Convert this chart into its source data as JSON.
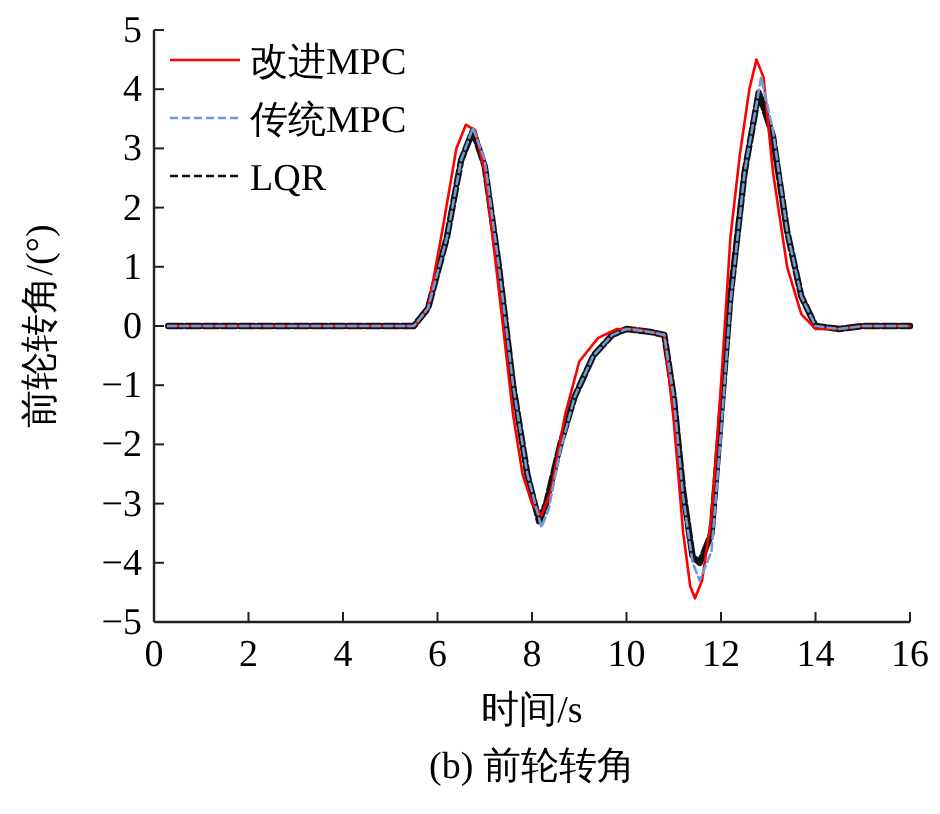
{
  "chart_data": {
    "type": "line",
    "title": "(b) 前轮转角",
    "xlabel": "时间/s",
    "ylabel": "前轮转角/(°)",
    "xlim": [
      0,
      16
    ],
    "xticks": [
      0,
      2,
      4,
      6,
      8,
      10,
      12,
      14,
      16
    ],
    "ylim": [
      -5,
      5
    ],
    "yticks": [
      {
        "value": -5,
        "label": "−5"
      },
      {
        "value": -4,
        "label": "−4"
      },
      {
        "value": -3,
        "label": "−3"
      },
      {
        "value": -2,
        "label": "−2"
      },
      {
        "value": -1,
        "label": "−1"
      },
      0,
      1,
      2,
      3,
      4,
      5
    ],
    "grid": false,
    "legend": "top left",
    "series": [
      {
        "name": "改进MPC",
        "color": "#ff0000",
        "line_style": "solid",
        "x": [
          0.3,
          5.5,
          5.8,
          6.1,
          6.4,
          6.6,
          6.8,
          7.0,
          7.3,
          7.6,
          7.8,
          8.0,
          8.2,
          8.4,
          8.7,
          9.0,
          9.4,
          9.8,
          10.2,
          10.8,
          11.0,
          11.2,
          11.35,
          11.45,
          11.6,
          11.8,
          12.0,
          12.2,
          12.4,
          12.6,
          12.75,
          12.9,
          13.1,
          13.4,
          13.7,
          14.0,
          14.5,
          15.0,
          16.0
        ],
        "values": [
          0,
          0,
          0.3,
          1.6,
          3.0,
          3.4,
          3.3,
          2.6,
          0.6,
          -1.5,
          -2.5,
          -3.0,
          -3.2,
          -2.8,
          -1.5,
          -0.6,
          -0.2,
          -0.05,
          -0.05,
          -0.15,
          -1.6,
          -3.5,
          -4.4,
          -4.6,
          -4.3,
          -3.2,
          -1.0,
          1.5,
          2.9,
          4.0,
          4.5,
          4.2,
          2.6,
          1.0,
          0.2,
          -0.05,
          -0.05,
          0,
          0
        ]
      },
      {
        "name": "传统MPC",
        "color": "#6f9ad8",
        "line_style": "dashed",
        "x": [
          0.3,
          5.5,
          5.8,
          6.2,
          6.5,
          6.75,
          7.0,
          7.3,
          7.6,
          7.9,
          8.2,
          8.35,
          8.6,
          8.9,
          9.3,
          9.7,
          10.0,
          10.5,
          10.8,
          11.0,
          11.2,
          11.4,
          11.55,
          11.8,
          12.0,
          12.2,
          12.5,
          12.85,
          13.1,
          13.4,
          13.7,
          14.0,
          14.5,
          15.0,
          16.0
        ],
        "values": [
          0,
          0,
          0.3,
          1.5,
          2.8,
          3.35,
          2.8,
          1.0,
          -1.0,
          -2.5,
          -3.4,
          -3.1,
          -2.1,
          -1.2,
          -0.5,
          -0.15,
          -0.05,
          -0.1,
          -0.15,
          -1.2,
          -2.9,
          -4.0,
          -4.3,
          -3.8,
          -1.8,
          0.4,
          2.6,
          4.2,
          3.3,
          1.6,
          0.5,
          0,
          -0.05,
          0,
          0
        ]
      },
      {
        "name": "LQR",
        "color": "#111111",
        "line_style": "dashed",
        "x": [
          0.3,
          5.5,
          5.8,
          6.2,
          6.5,
          6.75,
          7.0,
          7.3,
          7.6,
          7.9,
          8.15,
          8.3,
          8.6,
          8.9,
          9.3,
          9.7,
          10.0,
          10.5,
          10.8,
          11.0,
          11.2,
          11.4,
          11.55,
          11.8,
          12.0,
          12.2,
          12.5,
          12.8,
          13.1,
          13.4,
          13.7,
          14.0,
          14.5,
          15.0,
          16.0
        ],
        "values": [
          0,
          0,
          0.3,
          1.5,
          2.8,
          3.3,
          2.7,
          1.0,
          -1.0,
          -2.5,
          -3.3,
          -3.0,
          -2.0,
          -1.2,
          -0.5,
          -0.15,
          -0.05,
          -0.1,
          -0.15,
          -1.2,
          -2.8,
          -3.9,
          -4.0,
          -3.5,
          -1.5,
          0.5,
          2.6,
          3.95,
          3.2,
          1.6,
          0.5,
          0,
          -0.05,
          0,
          0
        ]
      }
    ]
  }
}
